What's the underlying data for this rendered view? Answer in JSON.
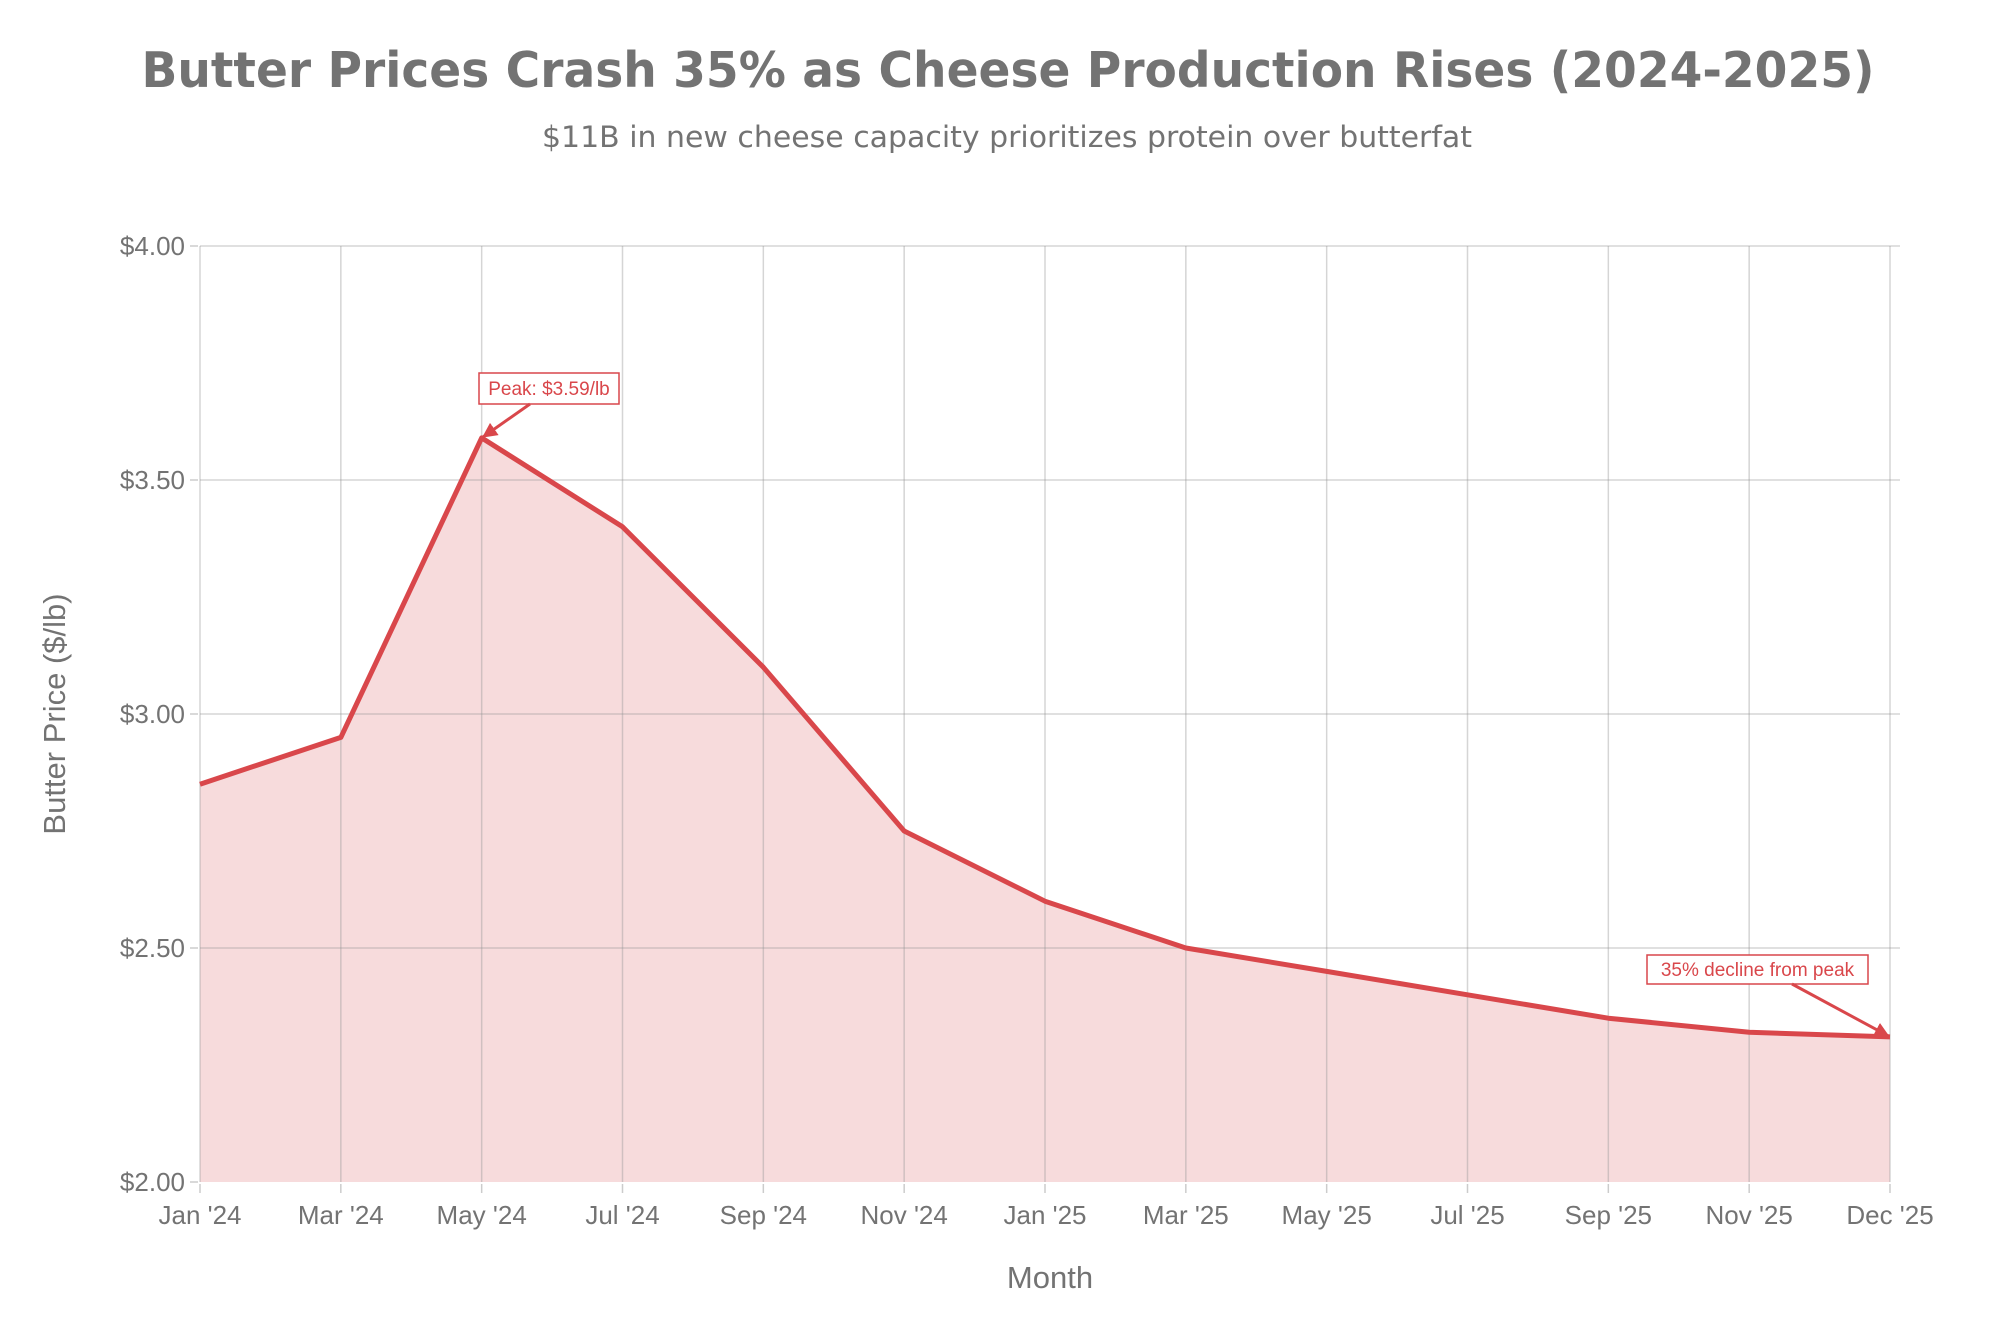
{
  "colors": {
    "line": "#d9474b",
    "fill": "#f7dbdc",
    "grid": "#cfcfcf",
    "text": "#737373",
    "annotation": "#d9474b"
  },
  "chart_data": {
    "type": "area",
    "title": "Butter Prices Crash 35% as Cheese Production Rises (2024-2025)",
    "subtitle": "$11B in new cheese capacity prioritizes protein over butterfat",
    "xlabel": "Month",
    "ylabel": "Butter Price ($/lb)",
    "categories": [
      "Jan '24",
      "Mar '24",
      "May '24",
      "Jul '24",
      "Sep '24",
      "Nov '24",
      "Jan '25",
      "Mar '25",
      "May '25",
      "Jul '25",
      "Sep '25",
      "Nov '25",
      "Dec '25"
    ],
    "series": [
      {
        "name": "Butter Price",
        "values": [
          2.85,
          2.95,
          3.59,
          3.4,
          3.1,
          2.75,
          2.6,
          2.5,
          2.45,
          2.4,
          2.35,
          2.32,
          2.31
        ]
      }
    ],
    "ylim": [
      2.0,
      4.0
    ],
    "yticks": [
      2.0,
      2.5,
      3.0,
      3.5,
      4.0
    ],
    "ytick_labels": [
      "$2.00",
      "$2.50",
      "$3.00",
      "$3.50",
      "$4.00"
    ],
    "grid": true,
    "legend": "none",
    "annotations": [
      {
        "text": "Peak: $3.59/lb",
        "category_index": 2,
        "value": 3.59
      },
      {
        "text": "35% decline from peak",
        "category_index": 12,
        "value": 2.31
      }
    ]
  }
}
